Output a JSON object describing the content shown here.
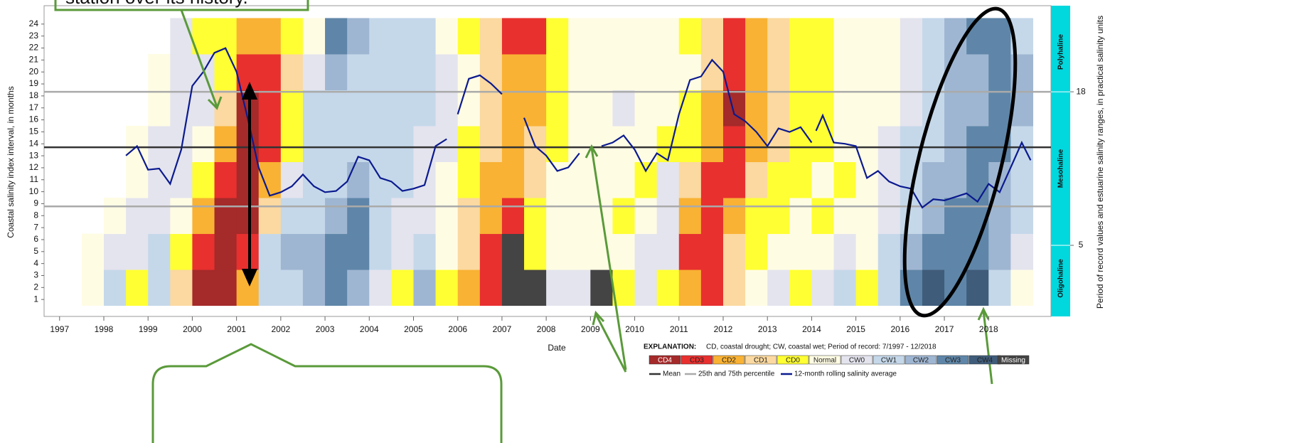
{
  "chart_data": {
    "type": "heatmap",
    "annotation": "station over its history.",
    "x_label": "Date",
    "y_label": "Coastal salinity index interval, in months",
    "y2_label": "Period of record values and estuarine salinity ranges, in practical salinity units",
    "explanation_title": "EXPLANATION:",
    "explanation": "CD, coastal drought; CW, coastal wet; Period of record: 7/1997 - 12/2018",
    "xlim": [
      1996.65,
      2019.41
    ],
    "xticks": [
      1997,
      1998,
      1999,
      2000,
      2001,
      2002,
      2003,
      2004,
      2005,
      2006,
      2007,
      2008,
      2009,
      2010,
      2011,
      2012,
      2013,
      2014,
      2015,
      2016,
      2017,
      2018
    ],
    "ylim": [
      0,
      25
    ],
    "yticks": [
      1,
      2,
      3,
      4,
      5,
      6,
      7,
      8,
      9,
      10,
      11,
      12,
      13,
      14,
      15,
      16,
      17,
      18,
      19,
      20,
      21,
      22,
      23,
      24
    ],
    "y2lim": [
      -0.6,
      24.75
    ],
    "y2ticks": [
      5,
      18
    ],
    "zones": [
      "Oligohaline",
      "Mesohaline",
      "Polyhaline"
    ],
    "zone_color": "#00d8de",
    "categories": [
      "CD4",
      "CD3",
      "CD2",
      "CD1",
      "CD0",
      "Normal",
      "CW0",
      "CW1",
      "CW2",
      "CW3",
      "CW4",
      "Missing"
    ],
    "colors": [
      "#a52a2a",
      "#e8302f",
      "#f9b234",
      "#fbd9a0",
      "#ffff33",
      "#fffce4",
      "#e4e4ee",
      "#c5d8ea",
      "#9fb6d2",
      "#5f86a8",
      "#3f5c7a",
      "#444444"
    ],
    "x_edges": [
      1997.5,
      1998,
      1998.5,
      1999,
      1999.5,
      2000,
      2000.5,
      2001,
      2001.5,
      2002,
      2002.5,
      2003,
      2003.5,
      2004,
      2004.5,
      2005,
      2005.5,
      2006,
      2006.5,
      2007,
      2007.5,
      2008,
      2008.5,
      2009,
      2009.5,
      2010,
      2010.5,
      2011,
      2011.5,
      2012,
      2012.5,
      2013,
      2013.5,
      2014,
      2014.5,
      2015,
      2015.5,
      2016,
      2016.5,
      2017,
      2017.5,
      2018,
      2018.5,
      2019
    ],
    "y_edges": [
      0.5,
      3.5,
      6.5,
      9.5,
      12.5,
      15.5,
      18.5,
      21.5,
      24.5
    ],
    "z": [
      [
        5,
        5,
        null,
        null,
        null,
        null,
        null,
        null
      ],
      [
        7,
        6,
        5,
        null,
        null,
        null,
        null,
        null
      ],
      [
        4,
        6,
        6,
        5,
        5,
        null,
        null,
        null
      ],
      [
        7,
        7,
        6,
        6,
        6,
        5,
        5,
        null
      ],
      [
        3,
        4,
        5,
        6,
        6,
        6,
        6,
        6
      ],
      [
        0,
        1,
        2,
        4,
        5,
        6,
        6,
        4
      ],
      [
        0,
        0,
        0,
        1,
        2,
        3,
        4,
        4
      ],
      [
        2,
        1,
        0,
        0,
        0,
        0,
        1,
        2
      ],
      [
        7,
        7,
        3,
        2,
        1,
        1,
        1,
        2
      ],
      [
        7,
        8,
        7,
        6,
        4,
        4,
        3,
        4
      ],
      [
        8,
        8,
        7,
        7,
        7,
        7,
        6,
        5
      ],
      [
        9,
        9,
        8,
        7,
        7,
        7,
        8,
        9
      ],
      [
        8,
        9,
        9,
        8,
        7,
        7,
        7,
        8
      ],
      [
        6,
        7,
        7,
        7,
        7,
        7,
        7,
        7
      ],
      [
        4,
        6,
        6,
        7,
        7,
        7,
        7,
        7
      ],
      [
        8,
        7,
        6,
        6,
        6,
        7,
        7,
        7
      ],
      [
        4,
        5,
        5,
        5,
        6,
        6,
        6,
        5
      ],
      [
        2,
        3,
        3,
        4,
        4,
        5,
        5,
        4
      ],
      [
        1,
        1,
        2,
        2,
        3,
        3,
        3,
        3
      ],
      [
        11,
        11,
        1,
        2,
        2,
        2,
        2,
        1
      ],
      [
        11,
        4,
        4,
        3,
        3,
        2,
        2,
        1
      ],
      [
        6,
        5,
        5,
        5,
        4,
        4,
        4,
        4
      ],
      [
        6,
        5,
        5,
        5,
        5,
        5,
        5,
        5
      ],
      [
        11,
        5,
        5,
        5,
        5,
        5,
        5,
        5
      ],
      [
        4,
        5,
        4,
        5,
        5,
        6,
        5,
        5
      ],
      [
        6,
        6,
        5,
        4,
        5,
        5,
        5,
        5
      ],
      [
        4,
        6,
        6,
        6,
        4,
        5,
        5,
        5
      ],
      [
        2,
        1,
        2,
        3,
        4,
        4,
        5,
        4
      ],
      [
        1,
        1,
        1,
        1,
        2,
        2,
        3,
        3
      ],
      [
        3,
        3,
        2,
        1,
        1,
        0,
        1,
        1
      ],
      [
        5,
        4,
        4,
        3,
        2,
        2,
        2,
        2
      ],
      [
        6,
        5,
        4,
        4,
        3,
        3,
        3,
        3
      ],
      [
        4,
        5,
        5,
        4,
        4,
        4,
        4,
        4
      ],
      [
        6,
        5,
        4,
        5,
        4,
        4,
        4,
        4
      ],
      [
        7,
        6,
        5,
        4,
        5,
        5,
        5,
        5
      ],
      [
        4,
        5,
        5,
        5,
        5,
        5,
        5,
        5
      ],
      [
        7,
        7,
        6,
        6,
        6,
        5,
        5,
        5
      ],
      [
        9,
        8,
        7,
        7,
        7,
        6,
        6,
        6
      ],
      [
        10,
        9,
        8,
        8,
        7,
        7,
        7,
        7
      ],
      [
        9,
        9,
        9,
        8,
        8,
        8,
        8,
        8
      ],
      [
        10,
        9,
        9,
        9,
        9,
        8,
        8,
        9
      ],
      [
        7,
        8,
        8,
        8,
        9,
        9,
        9,
        9
      ],
      [
        5,
        6,
        7,
        7,
        7,
        8,
        8,
        7
      ]
    ],
    "reference_lines": [
      {
        "name": "Mean",
        "color": "#333333",
        "values": [
          13.3
        ]
      },
      {
        "name": "25th and 75th percentile",
        "color": "#aaaaaa",
        "values": [
          8.3,
          18.0
        ]
      }
    ],
    "series": [
      {
        "name": "12-month rolling salinity average",
        "color": "#0b1a8f",
        "axis": "y2",
        "x": [
          1998.5,
          1998.75,
          1999,
          1999.25,
          1999.5,
          1999.75,
          2000,
          2000.25,
          2000.5,
          2000.75,
          2001,
          2001.25,
          2001.5,
          2001.75,
          2002,
          2002.25,
          2002.5,
          2002.75,
          2003,
          2003.25,
          2003.5,
          2003.75,
          2004,
          2004.25,
          2004.5,
          2004.75,
          2005,
          2005.25,
          2005.5,
          2005.75,
          2005.9,
          2006,
          2006.25,
          2006.5,
          2006.75,
          2007,
          2007.25,
          2007.5,
          2007.75,
          2008,
          2008.25,
          2008.5,
          2008.75,
          2009,
          2009.25,
          2009.5,
          2009.75,
          2010,
          2010.25,
          2010.5,
          2010.75,
          2011,
          2011.25,
          2011.5,
          2011.75,
          2012,
          2012.25,
          2012.5,
          2012.75,
          2013,
          2013.25,
          2013.5,
          2013.75,
          2014,
          2014.05,
          2014.1,
          2014.25,
          2014.5,
          2014.75,
          2015,
          2015.25,
          2015.5,
          2015.75,
          2016,
          2016.25,
          2016.5,
          2016.75,
          2017,
          2017.25,
          2017.5,
          2017.75,
          2018,
          2018.25,
          2018.5,
          2018.75,
          2018.95
        ],
        "values": [
          12.6,
          13.4,
          11.4,
          11.5,
          10.2,
          13.1,
          18.5,
          19.7,
          21.3,
          21.7,
          19.7,
          15.8,
          11.6,
          9.2,
          9.5,
          10.0,
          11.0,
          10.0,
          9.5,
          9.6,
          10.4,
          12.5,
          12.2,
          10.7,
          10.4,
          9.6,
          9.8,
          10.1,
          13.4,
          14.0,
          null,
          16.1,
          19.1,
          19.4,
          18.7,
          17.8,
          null,
          15.8,
          13.4,
          12.6,
          11.3,
          11.6,
          12.8,
          null,
          13.4,
          13.7,
          14.3,
          13.1,
          11.3,
          12.8,
          12.2,
          16.1,
          19.0,
          19.3,
          20.7,
          19.7,
          16.1,
          15.5,
          14.6,
          13.4,
          14.9,
          14.6,
          15.0,
          13.7,
          null,
          14.7,
          16.0,
          13.7,
          13.6,
          13.4,
          10.7,
          11.3,
          10.4,
          10.0,
          9.8,
          8.2,
          8.9,
          8.8,
          9.1,
          9.4,
          8.7,
          10.2,
          9.5,
          11.6,
          13.7,
          12.2
        ]
      }
    ]
  }
}
